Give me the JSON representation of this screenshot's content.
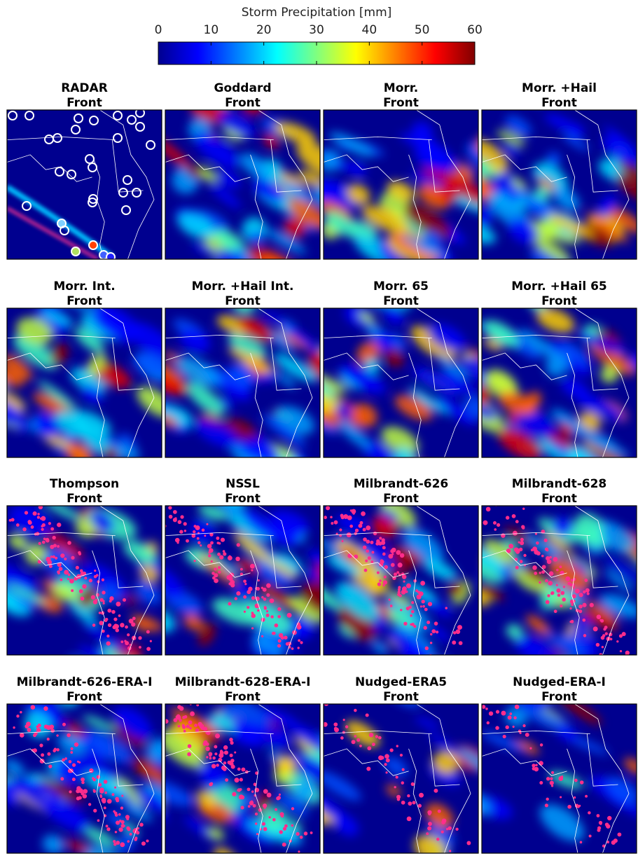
{
  "chart_data": {
    "type": "map",
    "colorbar": {
      "label": "Storm Precipitation [mm]",
      "xlim": [
        0,
        60
      ],
      "xticks": [
        0,
        10,
        20,
        30,
        40,
        50,
        60
      ]
    },
    "panels": [
      {
        "title": "RADAR",
        "subtitle": "Front"
      },
      {
        "title": "Goddard",
        "subtitle": "Front"
      },
      {
        "title": "Morr.",
        "subtitle": "Front"
      },
      {
        "title": "Morr. +Hail",
        "subtitle": "Front"
      },
      {
        "title": "Morr. Int.",
        "subtitle": "Front"
      },
      {
        "title": "Morr. +Hail Int.",
        "subtitle": "Front"
      },
      {
        "title": "Morr. 65",
        "subtitle": "Front"
      },
      {
        "title": "Morr. +Hail 65",
        "subtitle": "Front"
      },
      {
        "title": "Thompson",
        "subtitle": "Front"
      },
      {
        "title": "NSSL",
        "subtitle": "Front"
      },
      {
        "title": "Milbrandt-626",
        "subtitle": "Front"
      },
      {
        "title": "Milbrandt-628",
        "subtitle": "Front"
      },
      {
        "title": "Milbrandt-626-ERA-I",
        "subtitle": "Front"
      },
      {
        "title": "Milbrandt-628-ERA-I",
        "subtitle": "Front"
      },
      {
        "title": "Nudged-ERA5",
        "subtitle": "Front"
      },
      {
        "title": "Nudged-ERA-I",
        "subtitle": "Front"
      }
    ]
  }
}
